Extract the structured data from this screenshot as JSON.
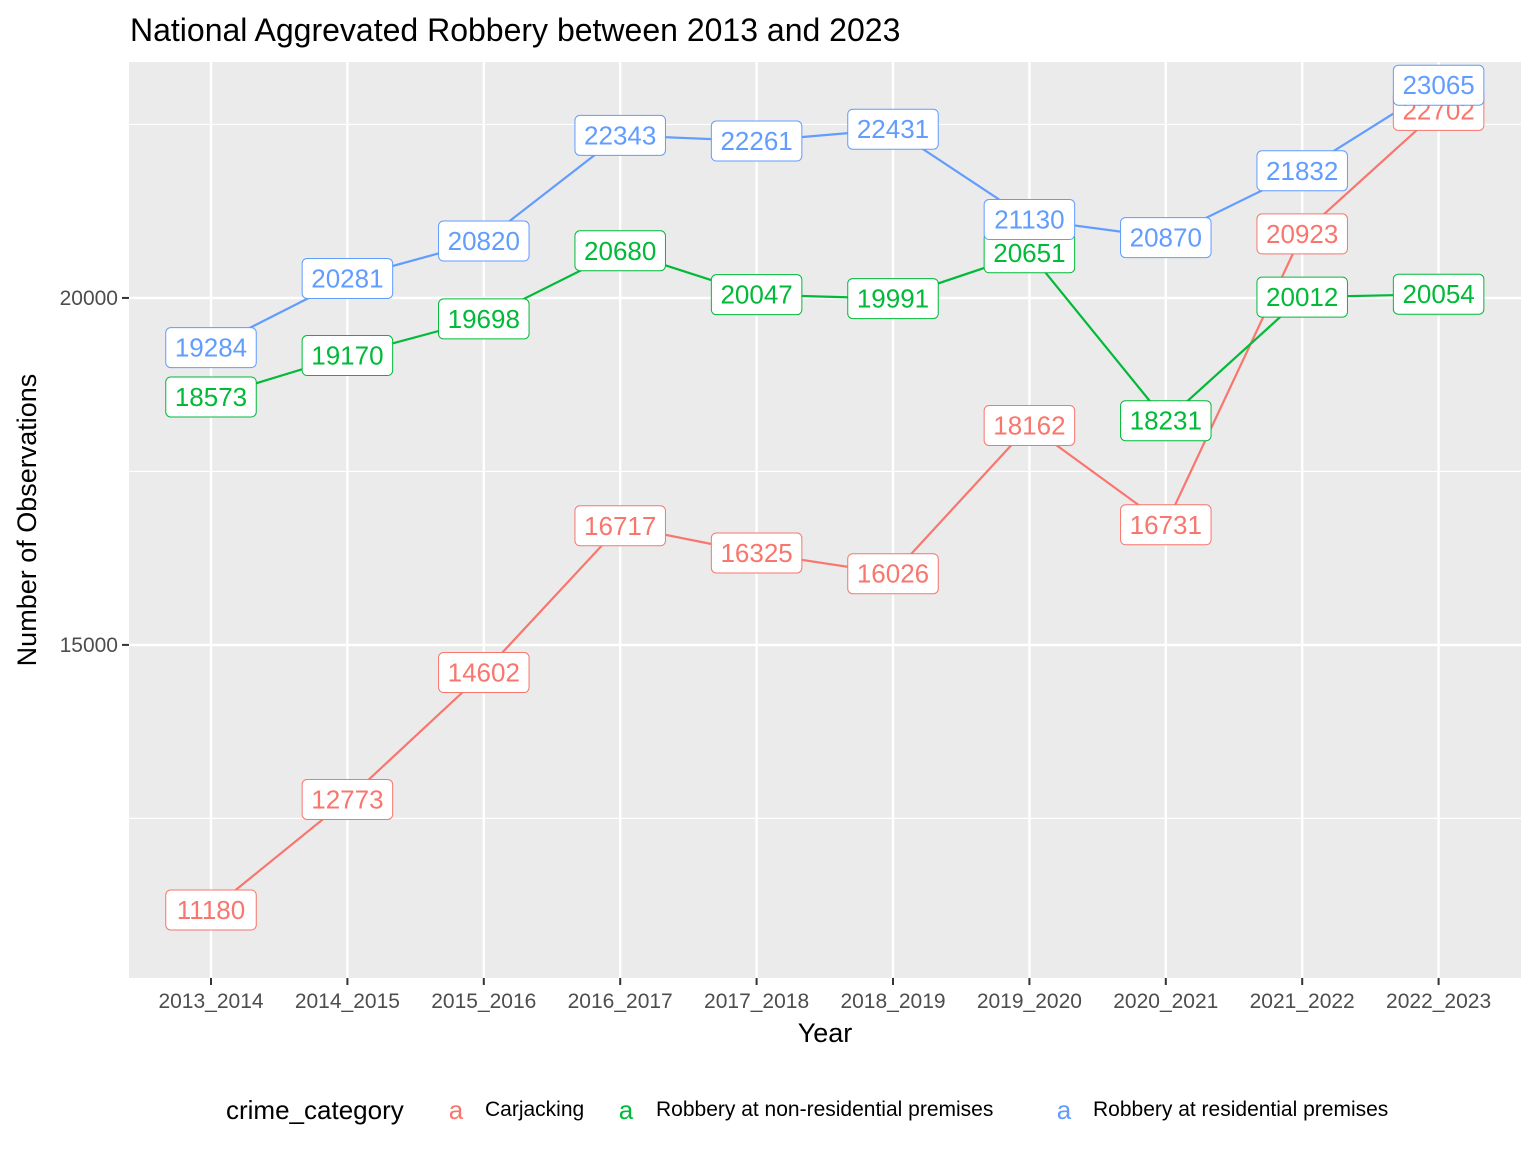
{
  "chart_data": {
    "type": "line",
    "title": "National Aggrevated Robbery between 2013 and 2023",
    "xlabel": "Year",
    "ylabel": "Number of Observations",
    "categories": [
      "2013_2014",
      "2014_2015",
      "2015_2016",
      "2016_2017",
      "2017_2018",
      "2018_2019",
      "2019_2020",
      "2020_2021",
      "2021_2022",
      "2022_2023"
    ],
    "ylim": [
      10200,
      23400
    ],
    "yticks": [
      15000,
      20000
    ],
    "ytick_labels": [
      "15000",
      "20000"
    ],
    "grid": true,
    "legend": {
      "title": "crime_category",
      "position": "bottom",
      "key_glyph": "a"
    },
    "series": [
      {
        "name": "Carjacking",
        "color": "#f8766d",
        "values": [
          11180,
          12773,
          14602,
          16717,
          16325,
          16026,
          18162,
          16731,
          20923,
          22702
        ],
        "labels": [
          "11180",
          "12773",
          "14602",
          "16717",
          "16325",
          "16026",
          "18162",
          "16731",
          "20923",
          "22702"
        ]
      },
      {
        "name": "Robbery at non-residential premises",
        "color": "#00ba38",
        "values": [
          18573,
          19170,
          19698,
          20680,
          20047,
          19991,
          20651,
          18231,
          20012,
          20054
        ],
        "labels": [
          "18573",
          "19170",
          "19698",
          "20680",
          "20047",
          "19991",
          "20651",
          "18231",
          "20012",
          "20054"
        ]
      },
      {
        "name": "Robbery at residential premises",
        "color": "#619cff",
        "values": [
          19284,
          20281,
          20820,
          22343,
          22261,
          22431,
          21130,
          20870,
          21832,
          23065
        ],
        "labels": [
          "19284",
          "20281",
          "20820",
          "22343",
          "22261",
          "22431",
          "21130",
          "20870",
          "21832",
          "23065"
        ]
      }
    ]
  }
}
